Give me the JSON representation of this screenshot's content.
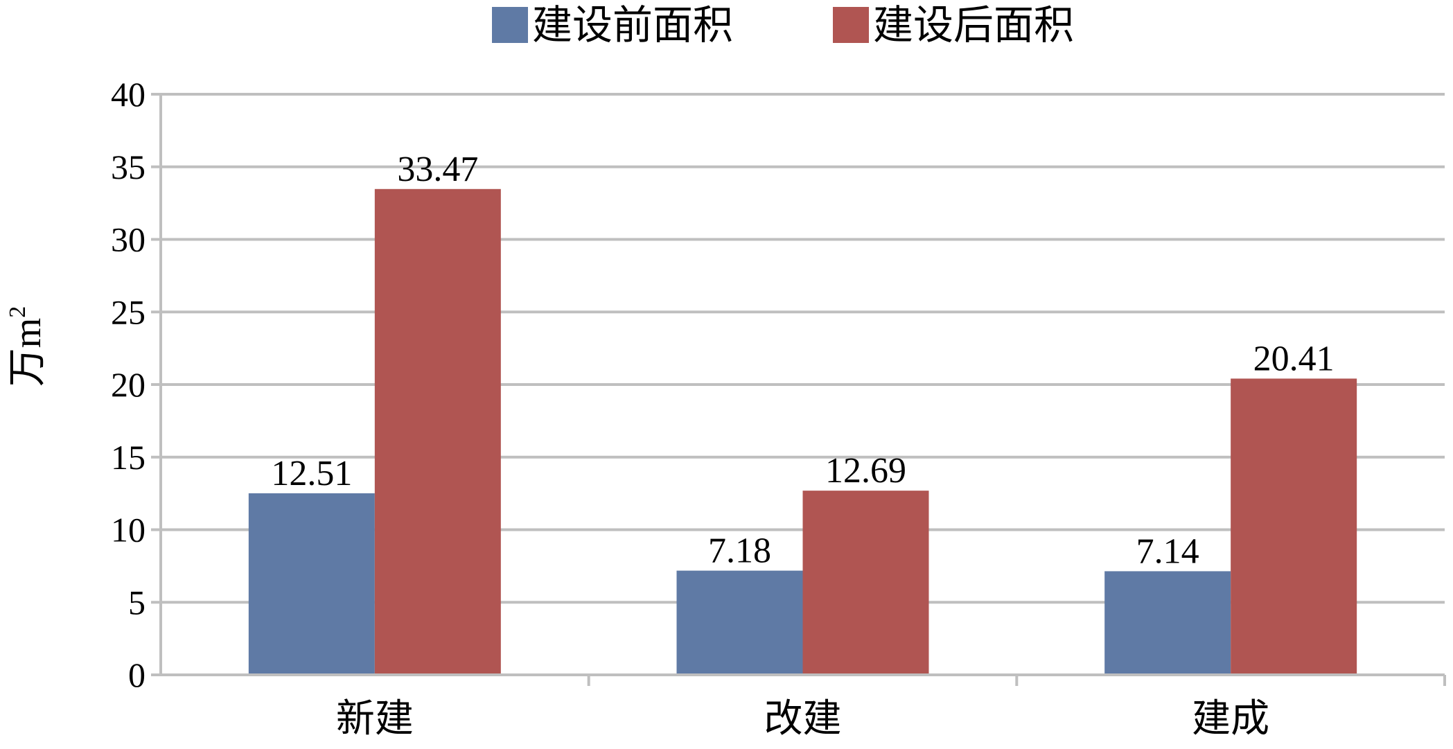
{
  "chart_data": {
    "type": "bar",
    "categories": [
      "新建",
      "改建",
      "建成"
    ],
    "series": [
      {
        "name": "建设前面积",
        "values": [
          12.51,
          7.18,
          7.14
        ],
        "color": "#5F7AA5"
      },
      {
        "name": "建设后面积",
        "values": [
          33.47,
          12.69,
          20.41
        ],
        "color": "#B05552"
      }
    ],
    "data_labels": [
      [
        "12.51",
        "7.18",
        "7.14"
      ],
      [
        "33.47",
        "12.69",
        "20.41"
      ]
    ],
    "ylabel": "万m",
    "ylabel_superscript": "2",
    "ylim": [
      0,
      40
    ],
    "yticks": [
      "0",
      "5",
      "10",
      "15",
      "20",
      "25",
      "30",
      "35",
      "40"
    ],
    "grid": true,
    "legend_position": "top-center",
    "gridline_color": "#BFBFBF",
    "axis_color": "#BFBFBF"
  }
}
